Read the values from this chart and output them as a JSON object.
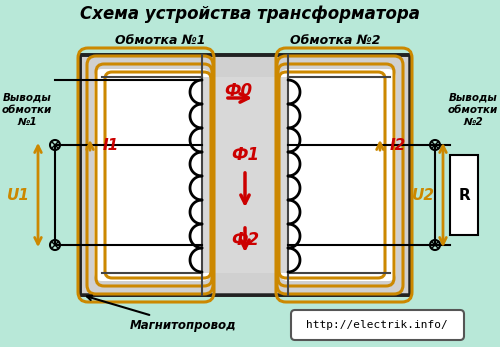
{
  "title": "Схема устройства трансформатора",
  "bg_color": "#b8e8d8",
  "coil_color": "#cc8800",
  "wire_color": "#000000",
  "red_color": "#cc0000",
  "orange_color": "#cc8800",
  "label_obmotka1": "Обмотка №1",
  "label_obmotka2": "Обмотка №2",
  "label_vyvody1": "Выводы\nобмотки\n№1",
  "label_vyvody2": "Выводы\nобмотки\n№2",
  "label_magnit": "Магнитопровод",
  "label_url": "http://electrik.info/",
  "label_phi0": "Ф0",
  "label_phi1": "Ф1",
  "label_phi2": "Ф2",
  "label_I1": "I1",
  "label_I2": "I2",
  "label_U1": "U1",
  "label_U2": "U2",
  "label_R": "R"
}
